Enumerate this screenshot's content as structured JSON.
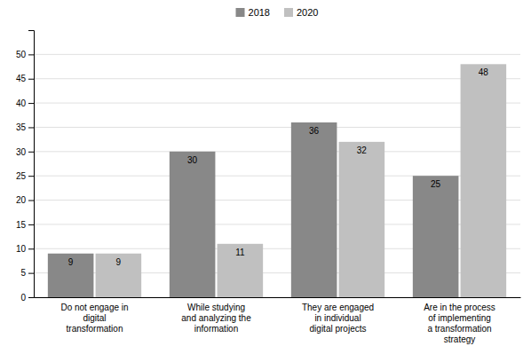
{
  "chart_data": {
    "type": "bar",
    "categories": [
      "Do not engage in\ndigital\ntransformation",
      "While studying\nand analyzing the\ninformation",
      "They are engaged\nin individual\ndigital projects",
      "Are in the process\nof implementing\na transformation\nstrategy"
    ],
    "series": [
      {
        "name": "2018",
        "color": "#888888",
        "values": [
          9,
          30,
          36,
          25
        ]
      },
      {
        "name": "2020",
        "color": "#c0c0c0",
        "values": [
          9,
          11,
          32,
          48
        ]
      }
    ],
    "ylim": [
      0,
      55
    ],
    "yticks": [
      0,
      5,
      10,
      15,
      20,
      25,
      30,
      35,
      40,
      45,
      50
    ],
    "grid": true,
    "legend": "top",
    "data_labels": true
  }
}
